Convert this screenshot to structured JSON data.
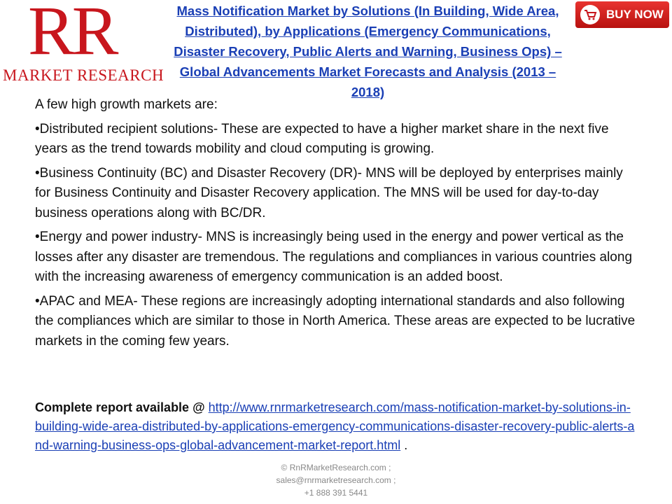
{
  "header": {
    "logo_mark": "RR",
    "logo_text": "MARKET RESEARCH",
    "title": "Mass Notification Market by Solutions (In Building, Wide Area, Distributed), by Applications (Emergency Communications, Disaster Recovery, Public Alerts and Warning, Business Ops) – Global Advancements Market Forecasts and Analysis (2013 – 2018)",
    "buy_button": "BUY NOW"
  },
  "body": {
    "intro": "A few high growth markets are:",
    "points": [
      "•Distributed recipient solutions- These are expected to have a higher market share in the next five years as the trend towards mobility and cloud computing is growing.",
      "•Business Continuity (BC) and Disaster Recovery (DR)- MNS will be deployed by enterprises mainly for Business Continuity and Disaster Recovery application. The MNS will be used for day-to-day business operations along with BC/DR.",
      "•Energy and power industry- MNS is increasingly being used in the energy and power vertical as the losses after any disaster are tremendous. The regulations and compliances in various countries along with the increasing awareness of emergency communication is an added boost.",
      "•APAC and MEA- These regions are increasingly adopting international standards and also following the compliances which are similar to those in North America. These areas are expected to be lucrative markets in the coming few years."
    ]
  },
  "report": {
    "label": "Complete report available @",
    "url": "http://www.rnrmarketresearch.com/mass-notification-market-by-solutions-in-building-wide-area-distributed-by-applications-emergency-communications-disaster-recovery-public-alerts-and-warning-business-ops-global-advancement-market-report.html",
    "end": "."
  },
  "footer": [
    "© RnRMarketResearch.com ;",
    "sales@rnrmarketresearch.com ;",
    "+1 888 391 5441"
  ]
}
